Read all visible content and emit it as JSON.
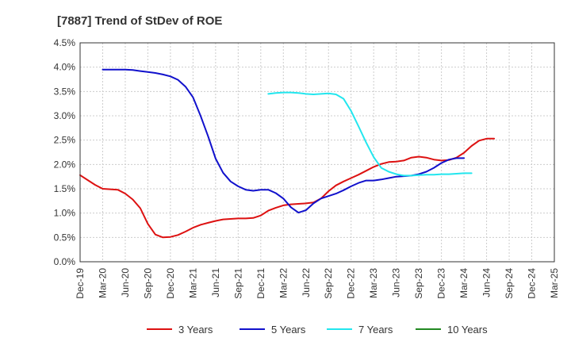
{
  "chart_data": {
    "type": "line",
    "title": "[7887]  Trend of StDev of ROE",
    "xlabel": "",
    "ylabel": "",
    "x_ticks": [
      "Dec-19",
      "Mar-20",
      "Jun-20",
      "Sep-20",
      "Dec-20",
      "Mar-21",
      "Jun-21",
      "Sep-21",
      "Dec-21",
      "Mar-22",
      "Jun-22",
      "Sep-22",
      "Dec-22",
      "Mar-23",
      "Jun-23",
      "Sep-23",
      "Dec-23",
      "Mar-24",
      "Jun-24",
      "Sep-24",
      "Dec-24",
      "Mar-25"
    ],
    "y_ticks": [
      "0.0%",
      "0.5%",
      "1.0%",
      "1.5%",
      "2.0%",
      "2.5%",
      "3.0%",
      "3.5%",
      "4.0%",
      "4.5%"
    ],
    "ylim": [
      0,
      4.5
    ],
    "grid": true,
    "legend_position": "bottom",
    "series": [
      {
        "name": "3 Years",
        "color": "#dd1111",
        "start_index": 0,
        "values": [
          1.78,
          1.68,
          1.58,
          1.5,
          1.49,
          1.48,
          1.4,
          1.28,
          1.1,
          0.78,
          0.56,
          0.5,
          0.51,
          0.55,
          0.62,
          0.7,
          0.76,
          0.8,
          0.84,
          0.87,
          0.88,
          0.89,
          0.89,
          0.9,
          0.95,
          1.05,
          1.11,
          1.16,
          1.18,
          1.19,
          1.2,
          1.22,
          1.3,
          1.45,
          1.57,
          1.65,
          1.72,
          1.79,
          1.87,
          1.95,
          2.01,
          2.05,
          2.06,
          2.08,
          2.14,
          2.16,
          2.14,
          2.1,
          2.08,
          2.09,
          2.14,
          2.24,
          2.38,
          2.49,
          2.53,
          2.53
        ]
      },
      {
        "name": "5 Years",
        "color": "#1111cc",
        "start_index": 3,
        "values": [
          3.95,
          3.95,
          3.95,
          3.95,
          3.94,
          3.92,
          3.9,
          3.88,
          3.85,
          3.81,
          3.74,
          3.6,
          3.38,
          3.0,
          2.58,
          2.12,
          1.83,
          1.65,
          1.55,
          1.48,
          1.46,
          1.48,
          1.48,
          1.41,
          1.3,
          1.12,
          1.01,
          1.06,
          1.2,
          1.3,
          1.35,
          1.4,
          1.47,
          1.55,
          1.62,
          1.67,
          1.67,
          1.69,
          1.72,
          1.75,
          1.76,
          1.77,
          1.8,
          1.85,
          1.93,
          2.03,
          2.1,
          2.13,
          2.13
        ]
      },
      {
        "name": "7 Years",
        "color": "#22e6ee",
        "start_index": 25,
        "values": [
          3.45,
          3.47,
          3.48,
          3.48,
          3.47,
          3.45,
          3.44,
          3.45,
          3.46,
          3.44,
          3.35,
          3.1,
          2.78,
          2.45,
          2.15,
          1.93,
          1.85,
          1.8,
          1.77,
          1.77,
          1.78,
          1.79,
          1.79,
          1.8,
          1.8,
          1.81,
          1.82,
          1.82
        ]
      },
      {
        "name": "10 Years",
        "color": "#228822",
        "start_index": 0,
        "values": []
      }
    ]
  }
}
